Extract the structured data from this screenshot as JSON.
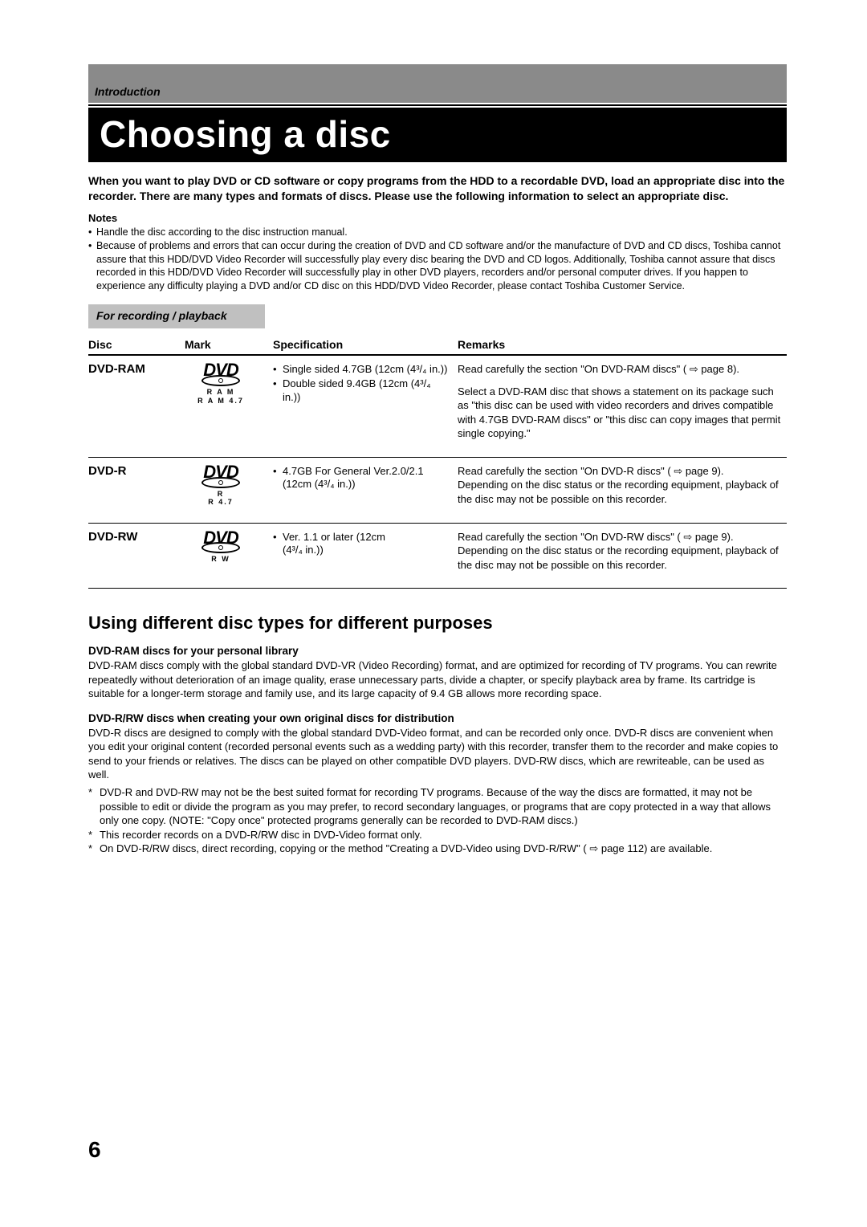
{
  "breadcrumb": "Introduction",
  "page_title": "Choosing a disc",
  "lead_paragraph": "When you want to play DVD or CD software or copy programs from the HDD to a recordable DVD, load an appropriate disc into the recorder. There are many types and formats of discs. Please use the following information to select an appropriate disc.",
  "notes_label": "Notes",
  "notes": [
    "Handle the disc according to the disc instruction manual.",
    "Because of problems and errors that can occur during the creation of DVD and CD software and/or the manufacture of DVD and CD discs, Toshiba cannot assure that this HDD/DVD Video Recorder will successfully play every disc bearing the DVD and CD logos. Additionally, Toshiba cannot assure that discs recorded in this HDD/DVD Video Recorder will successfully play in other DVD players, recorders and/or personal computer drives. If you happen to experience any difficulty playing a DVD and/or CD disc on this HDD/DVD Video Recorder, please contact Toshiba Customer Service."
  ],
  "section_label": "For recording / playback",
  "table": {
    "headers": {
      "disc": "Disc",
      "mark": "Mark",
      "spec": "Specification",
      "remarks": "Remarks"
    },
    "rows": [
      {
        "name": "DVD-RAM",
        "logo_sub": [
          "R A M",
          "R A M 4.7"
        ],
        "specs": [
          "Single sided 4.7GB (12cm (4³/₄ in.))",
          "Double sided 9.4GB (12cm (4³/₄ in.))"
        ],
        "remarks": [
          "Read carefully the section \"On DVD-RAM discs\" ( ⇨ page 8).",
          "Select a DVD-RAM disc that shows a statement on its package such as \"this disc can be used with video recorders and drives compatible with 4.7GB DVD-RAM discs\" or \"this disc can copy images that permit single copying.\""
        ]
      },
      {
        "name": "DVD-R",
        "logo_sub": [
          "R",
          "R 4.7"
        ],
        "specs": [
          "4.7GB For General Ver.2.0/2.1"
        ],
        "spec_sub": "(12cm (4³/₄ in.))",
        "remarks": [
          "Read carefully the section \"On DVD-R discs\" ( ⇨ page 9).\nDepending on the disc status or the recording equipment, playback of the disc may not be possible on this recorder."
        ]
      },
      {
        "name": "DVD-RW",
        "logo_sub": [
          "R W"
        ],
        "specs": [
          "Ver. 1.1 or later (12cm"
        ],
        "spec_sub": "(4³/₄ in.))",
        "remarks": [
          "Read carefully the section \"On DVD-RW discs\" ( ⇨ page 9).\nDepending on the disc status or the recording equipment, playback of the disc may not be possible on this recorder."
        ]
      }
    ]
  },
  "subheading": "Using different disc types for different purposes",
  "body": [
    {
      "h": "DVD-RAM discs for your personal library",
      "p": "DVD-RAM discs comply with the global standard DVD-VR (Video Recording) format, and are optimized for recording of TV programs. You can rewrite repeatedly without deterioration of an image quality, erase unnecessary parts, divide a chapter, or specify playback area by frame. Its cartridge is suitable for a longer-term storage and family use, and its large capacity of 9.4 GB allows more recording space."
    },
    {
      "h": "DVD-R/RW discs when creating your own original discs for distribution",
      "p": "DVD-R discs are designed to comply with the global standard DVD-Video format, and can be recorded only once. DVD-R discs are convenient when you edit your original content (recorded personal events such as a wedding party) with this recorder, transfer them to the recorder and make copies to send to your friends or relatives. The discs can be played on other compatible DVD players. DVD-RW discs, which are rewriteable, can be used as well."
    }
  ],
  "footnotes": [
    "DVD-R and DVD-RW may not be the best suited format for recording TV programs. Because of the way the discs are formatted, it may not be possible to edit or divide the program as you may prefer, to record secondary languages, or programs that are copy protected in a way that allows only one copy. (NOTE: \"Copy once\" protected programs generally can be recorded to DVD-RAM discs.)",
    "This recorder records on a DVD-R/RW disc in DVD-Video format only.",
    "On DVD-R/RW discs, direct recording, copying or the method \"Creating a DVD-Video using DVD-R/RW\" ( ⇨ page 112) are available."
  ],
  "page_number": "6",
  "colors": {
    "banner_gray": "#8a8a8a",
    "tab_gray": "#c0c0c0",
    "title_bg": "#000000",
    "text": "#000000"
  }
}
